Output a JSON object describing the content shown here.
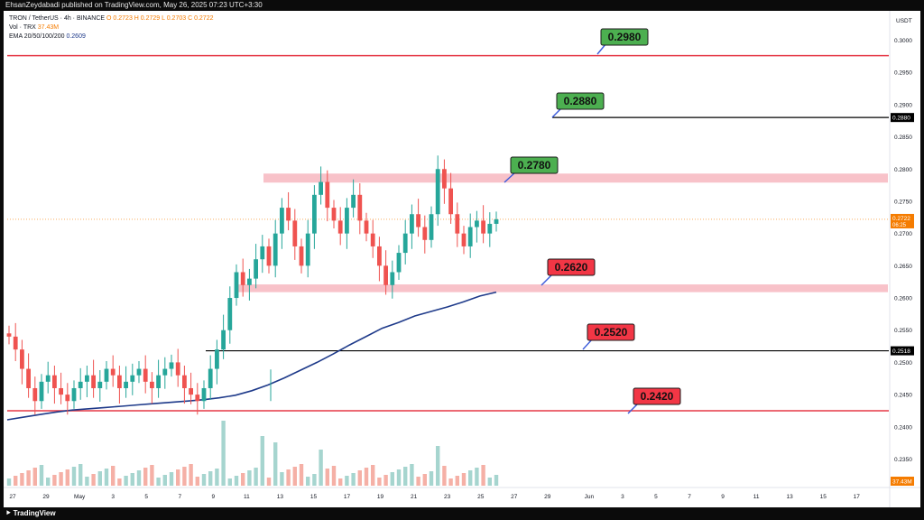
{
  "header": {
    "published": "EhsanZeydabadi published on TradingView.com, May 26, 2025 07:23 UTC+3:30"
  },
  "legend": {
    "symbol": "TRON / TetherUS · 4h · BINANCE",
    "ohlc": "O 0.2723 H 0.2729 L 0.2703 C 0.2722",
    "volume_label": "Vol · TRX",
    "volume_value": "37.43M",
    "ema_label": "EMA 20/50/100/200",
    "ema_value": "0.2609"
  },
  "price_axis": {
    "currency": "USDT",
    "ticks": [
      "0.3000",
      "0.2950",
      "0.2900",
      "0.2850",
      "0.2800",
      "0.2750",
      "0.2700",
      "0.2650",
      "0.2600",
      "0.2550",
      "0.2500",
      "0.2450",
      "0.2400",
      "0.2350"
    ],
    "last_price": "0.2722",
    "countdown": "06:25",
    "volume_badge": "37.43M"
  },
  "time_axis": {
    "ticks": [
      "27",
      "29",
      "May",
      "3",
      "5",
      "7",
      "9",
      "11",
      "13",
      "15",
      "17",
      "19",
      "21",
      "23",
      "25",
      "27",
      "29",
      "Jun",
      "3",
      "5",
      "7",
      "9",
      "11",
      "13",
      "15",
      "17"
    ]
  },
  "chart_data": {
    "type": "candlestick",
    "symbol": "TRXUSDT",
    "timeframe": "4h",
    "ylim": [
      0.232,
      0.303
    ],
    "levels": [
      {
        "label": "0.2980",
        "value": 0.2976,
        "kind": "resistance",
        "line_color": "#e53946",
        "badge_color": "#4caf50",
        "axis_label": ""
      },
      {
        "label": "0.2880",
        "value": 0.288,
        "kind": "target",
        "line_color": "#000000",
        "badge_color": "#4caf50",
        "axis_label": "0.2880"
      },
      {
        "label": "0.2780",
        "value": 0.2785,
        "kind": "resistance-zone",
        "zone": [
          0.2779,
          0.2793
        ],
        "badge_color": "#4caf50",
        "axis_label": ""
      },
      {
        "label": "0.2620",
        "value": 0.2616,
        "kind": "support-zone",
        "zone": [
          0.2609,
          0.2621
        ],
        "badge_color": "#f23645",
        "axis_label": ""
      },
      {
        "label": "0.2520",
        "value": 0.2518,
        "kind": "support",
        "line_color": "#000000",
        "badge_color": "#f23645",
        "axis_label": "0.2518"
      },
      {
        "label": "0.2420",
        "value": 0.2425,
        "kind": "support",
        "line_color": "#e53946",
        "badge_color": "#f23645",
        "axis_label": ""
      }
    ],
    "ema_200": [
      0.2411,
      0.2415,
      0.2419,
      0.2423,
      0.2426,
      0.2428,
      0.243,
      0.2432,
      0.2434,
      0.2436,
      0.2438,
      0.244,
      0.2442,
      0.2445,
      0.2449,
      0.2456,
      0.2465,
      0.2476,
      0.2488,
      0.25,
      0.2513,
      0.2527,
      0.254,
      0.2553,
      0.2562,
      0.2572,
      0.2579,
      0.2586,
      0.2594,
      0.2603,
      0.2609
    ],
    "closes": [
      0.254,
      0.252,
      0.249,
      0.246,
      0.244,
      0.247,
      0.248,
      0.246,
      0.245,
      0.244,
      0.246,
      0.247,
      0.248,
      0.246,
      0.247,
      0.249,
      0.248,
      0.246,
      0.247,
      0.248,
      0.249,
      0.247,
      0.246,
      0.248,
      0.249,
      0.25,
      0.248,
      0.246,
      0.245,
      0.244,
      0.246,
      0.249,
      0.252,
      0.255,
      0.26,
      0.264,
      0.262,
      0.263,
      0.266,
      0.268,
      0.265,
      0.27,
      0.274,
      0.272,
      0.268,
      0.265,
      0.27,
      0.276,
      0.278,
      0.274,
      0.272,
      0.27,
      0.274,
      0.276,
      0.272,
      0.27,
      0.268,
      0.265,
      0.262,
      0.264,
      0.267,
      0.27,
      0.273,
      0.271,
      0.269,
      0.273,
      0.28,
      0.277,
      0.273,
      0.27,
      0.268,
      0.271,
      0.272,
      0.27,
      0.2715,
      0.2722
    ]
  }
}
